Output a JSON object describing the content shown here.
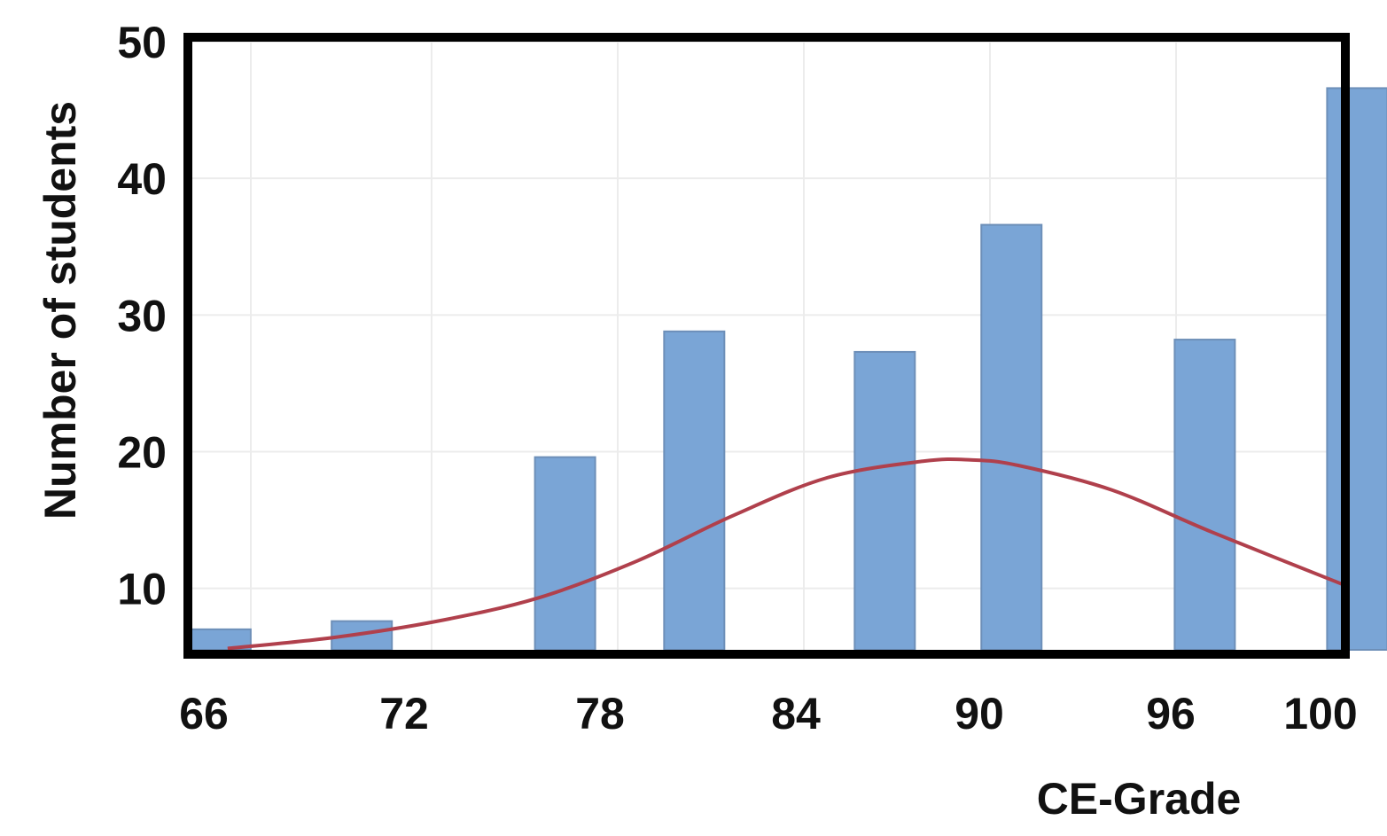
{
  "chart_data": {
    "type": "bar",
    "title": "",
    "xlabel": "CE-Grade",
    "ylabel": "Number of students",
    "x_ticks": [
      "66",
      "72",
      "78",
      "84",
      "90",
      "96",
      "100"
    ],
    "y_ticks": [
      "10",
      "20",
      "30",
      "40",
      "50"
    ],
    "ylim": [
      5.5,
      50
    ],
    "xlim": [
      66,
      100
    ],
    "grid": true,
    "legend": "none",
    "bars": [
      {
        "x": 66.8,
        "value": 7
      },
      {
        "x": 70.8,
        "value": 7.6
      },
      {
        "x": 76.8,
        "value": 19.6
      },
      {
        "x": 80.8,
        "value": 28.8
      },
      {
        "x": 86.8,
        "value": 27.3
      },
      {
        "x": 90.8,
        "value": 36.6
      },
      {
        "x": 96.8,
        "value": 28.2
      },
      {
        "x": 100.8,
        "value": 46.6
      }
    ],
    "series": [
      {
        "type": "line",
        "x": [
          67,
          70,
          73,
          76,
          79,
          82,
          85,
          88,
          89.5,
          91,
          94,
          97,
          100.5
        ],
        "y": [
          5.6,
          6.4,
          7.6,
          9.3,
          12,
          15.3,
          18.1,
          19.3,
          19.4,
          19,
          17.2,
          14.1,
          10.2
        ]
      }
    ],
    "colors": {
      "bar": "#7aa5d6",
      "bar_edge": "#6d8fb8",
      "curve": "#b0404c",
      "frame": "#000000"
    }
  }
}
